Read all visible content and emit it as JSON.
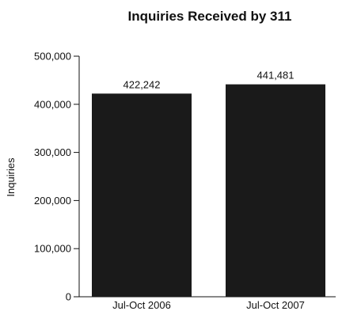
{
  "chart_data": {
    "type": "bar",
    "title": "Inquiries Received by 311",
    "ylabel": "Inquiries",
    "xlabel": "",
    "categories": [
      "Jul-Oct 2006",
      "Jul-Oct 2007"
    ],
    "values": [
      422242,
      441481
    ],
    "value_labels": [
      "422,242",
      "441,481"
    ],
    "ylim": [
      0,
      500000
    ],
    "yticks": [
      0,
      100000,
      200000,
      300000,
      400000,
      500000
    ],
    "ytick_labels": [
      "0",
      "100,000",
      "200,000",
      "300,000",
      "400,000",
      "500,000"
    ],
    "grid": false,
    "legend": "none",
    "bar_color": "#1a1a1a"
  }
}
